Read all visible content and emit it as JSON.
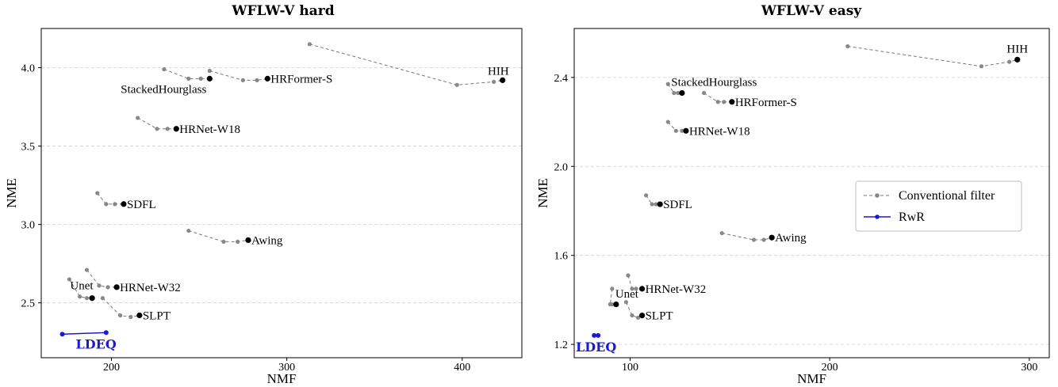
{
  "chart_data": [
    {
      "type": "line",
      "title": "WFLW-V hard",
      "xlabel": "NMF",
      "ylabel": "NME",
      "xlim": [
        160,
        434
      ],
      "ylim": [
        2.15,
        4.25
      ],
      "xticks": [
        200,
        300,
        400
      ],
      "yticks": [
        2.5,
        3.0,
        3.5,
        4.0
      ],
      "xtick_labels": [
        "200",
        "300",
        "400"
      ],
      "ytick_labels": [
        "2.5",
        "3.0",
        "3.5",
        "4.0"
      ],
      "grid": "horizontal-dashed",
      "series": [
        {
          "label": "HIH",
          "kind": "conventional",
          "points": [
            [
              313,
              4.15
            ],
            [
              397,
              3.89
            ],
            [
              418,
              3.91
            ],
            [
              423,
              3.92
            ]
          ],
          "label_pos": "above-left"
        },
        {
          "label": "StackedHourglass",
          "kind": "conventional",
          "points": [
            [
              230,
              3.99
            ],
            [
              244,
              3.93
            ],
            [
              251,
              3.93
            ],
            [
              256,
              3.93
            ]
          ],
          "label_pos": "below-left"
        },
        {
          "label": "HRFormer-S",
          "kind": "conventional",
          "points": [
            [
              256,
              3.98
            ],
            [
              275,
              3.92
            ],
            [
              283,
              3.92
            ],
            [
              289,
              3.93
            ]
          ],
          "label_pos": "right"
        },
        {
          "label": "HRNet-W18",
          "kind": "conventional",
          "points": [
            [
              215,
              3.68
            ],
            [
              226,
              3.61
            ],
            [
              232,
              3.61
            ],
            [
              237,
              3.61
            ]
          ],
          "label_pos": "right"
        },
        {
          "label": "SDFL",
          "kind": "conventional",
          "points": [
            [
              192,
              3.2
            ],
            [
              197,
              3.13
            ],
            [
              202,
              3.13
            ],
            [
              207,
              3.13
            ]
          ],
          "label_pos": "right"
        },
        {
          "label": "Awing",
          "kind": "conventional",
          "points": [
            [
              244,
              2.96
            ],
            [
              264,
              2.89
            ],
            [
              272,
              2.89
            ],
            [
              278,
              2.9
            ]
          ],
          "label_pos": "right"
        },
        {
          "label": "HRNet-W32",
          "kind": "conventional",
          "points": [
            [
              186,
              2.71
            ],
            [
              193,
              2.61
            ],
            [
              198,
              2.6
            ],
            [
              203,
              2.6
            ]
          ],
          "label_pos": "right"
        },
        {
          "label": "Unet",
          "kind": "conventional",
          "points": [
            [
              176,
              2.65
            ],
            [
              182,
              2.54
            ],
            [
              186,
              2.53
            ],
            [
              189,
              2.53
            ]
          ],
          "label_pos": "above-left"
        },
        {
          "label": "SLPT",
          "kind": "conventional",
          "points": [
            [
              195,
              2.53
            ],
            [
              205,
              2.42
            ],
            [
              211,
              2.41
            ],
            [
              216,
              2.42
            ]
          ],
          "label_pos": "right"
        },
        {
          "label": "LDEQ",
          "kind": "rwr",
          "points": [
            [
              172,
              2.3
            ],
            [
              197,
              2.31
            ]
          ],
          "label_pos": "below"
        }
      ]
    },
    {
      "type": "line",
      "title": "WFLW-V easy",
      "xlabel": "NMF",
      "ylabel": "NME",
      "xlim": [
        72,
        310
      ],
      "ylim": [
        1.14,
        2.62
      ],
      "xticks": [
        100,
        200,
        300
      ],
      "yticks": [
        1.2,
        1.6,
        2.0,
        2.4
      ],
      "xtick_labels": [
        "100",
        "200",
        "300"
      ],
      "ytick_labels": [
        "1.2",
        "1.6",
        "2.0",
        "2.4"
      ],
      "grid": "horizontal-dashed",
      "series": [
        {
          "label": "HIH",
          "kind": "conventional",
          "points": [
            [
              209,
              2.54
            ],
            [
              276,
              2.45
            ],
            [
              290,
              2.47
            ],
            [
              294,
              2.48
            ]
          ],
          "label_pos": "above"
        },
        {
          "label": "StackedHourglass",
          "kind": "conventional",
          "points": [
            [
              119,
              2.37
            ],
            [
              122,
              2.33
            ],
            [
              124,
              2.33
            ],
            [
              126,
              2.33
            ]
          ],
          "label_pos": "above-right"
        },
        {
          "label": "HRFormer-S",
          "kind": "conventional",
          "points": [
            [
              137,
              2.33
            ],
            [
              144,
              2.29
            ],
            [
              147,
              2.29
            ],
            [
              151,
              2.29
            ]
          ],
          "label_pos": "right"
        },
        {
          "label": "HRNet-W18",
          "kind": "conventional",
          "points": [
            [
              119,
              2.2
            ],
            [
              123,
              2.16
            ],
            [
              126,
              2.16
            ],
            [
              128,
              2.16
            ]
          ],
          "label_pos": "right"
        },
        {
          "label": "SDFL",
          "kind": "conventional",
          "points": [
            [
              108,
              1.87
            ],
            [
              111,
              1.83
            ],
            [
              113,
              1.83
            ],
            [
              115,
              1.83
            ]
          ],
          "label_pos": "right"
        },
        {
          "label": "Awing",
          "kind": "conventional",
          "points": [
            [
              146,
              1.7
            ],
            [
              162,
              1.67
            ],
            [
              167,
              1.67
            ],
            [
              171,
              1.68
            ]
          ],
          "label_pos": "right"
        },
        {
          "label": "HRNet-W32",
          "kind": "conventional",
          "points": [
            [
              99,
              1.51
            ],
            [
              101,
              1.45
            ],
            [
              103,
              1.45
            ],
            [
              106,
              1.45
            ]
          ],
          "label_pos": "right"
        },
        {
          "label": "Unet",
          "kind": "conventional",
          "points": [
            [
              91,
              1.45
            ],
            [
              90,
              1.38
            ],
            [
              91,
              1.38
            ],
            [
              93,
              1.38
            ]
          ],
          "label_pos": "above-right"
        },
        {
          "label": "SLPT",
          "kind": "conventional",
          "points": [
            [
              98,
              1.39
            ],
            [
              101,
              1.33
            ],
            [
              104,
              1.32
            ],
            [
              106,
              1.33
            ]
          ],
          "label_pos": "right"
        },
        {
          "label": "LDEQ",
          "kind": "rwr",
          "points": [
            [
              82,
              1.24
            ],
            [
              84,
              1.24
            ]
          ],
          "label_pos": "below"
        }
      ],
      "legend": {
        "placement": "right-middle",
        "entries": [
          {
            "label": "Conventional filter",
            "kind": "conventional"
          },
          {
            "label": "RwR",
            "kind": "rwr"
          }
        ]
      }
    }
  ],
  "colors": {
    "conventional_line": "#777777",
    "conventional_point": "#888888",
    "final_point": "#000000",
    "rwr": "#1a1ad6",
    "grid": "#cfcfcf"
  }
}
